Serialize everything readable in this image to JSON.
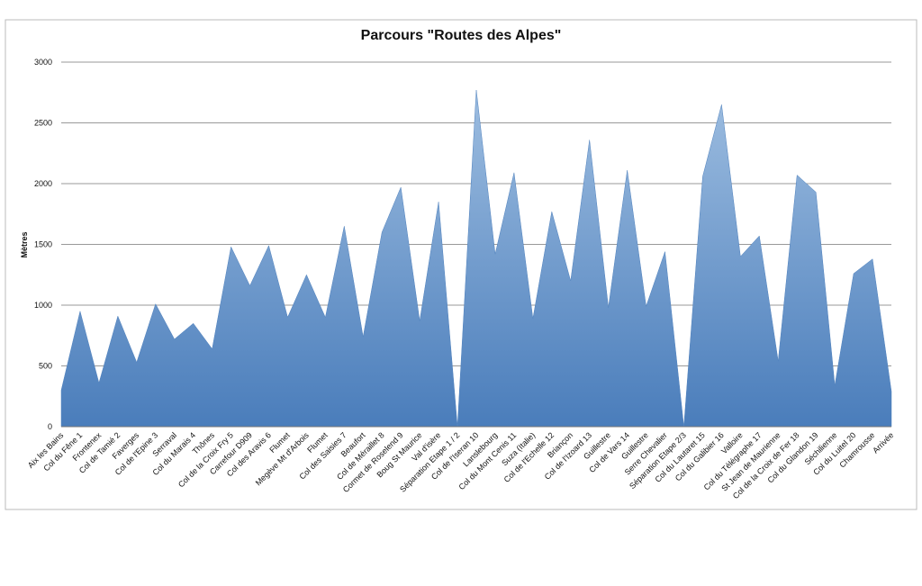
{
  "chart_data": {
    "type": "area",
    "title": "Parcours \"Routes des Alpes\"",
    "y_label": "Mètres",
    "categories": [
      "Aix les Bains",
      "Col du Fêne 1",
      "Frontenex",
      "Col de Tamié 2",
      "Faverges",
      "Col de l'Epine 3",
      "Serraval",
      "Col du Marais 4",
      "Thônes",
      "Col de la Croix Fry 5",
      "Carrefour D909",
      "Col des Aravis 6",
      "Flumet",
      "Megève Mt d'Arbois",
      "Flumet",
      "Col des Saisies 7",
      "Beaufort",
      "Col de Méraillet 8",
      "Cormet de Roselend 9",
      "Boug St Maurice",
      "Val d'isère",
      "Séparation Etape 1 / 2",
      "Col de l'Iseran 10",
      "Lanslebourg",
      "Col du Mont Cenis 11",
      "Suza (Italie)",
      "Col de l'Echelle 12",
      "Briançon",
      "Col de l'Izoard 13",
      "Guillestre",
      "Col de Vars 14",
      "Guillestre",
      "Serre Chevalier",
      "Séparation Etape 2/3",
      "Col du Lautaret 15",
      "Col du Galibier 16",
      "Valloire",
      "Col du Télégraphe 17",
      "St Jean de Maurienne",
      "Col de la Croix de Fer 18",
      "Col du Glandon 19",
      "Séchilienne",
      "Col du Luitel 20",
      "Chamrousse",
      "Arrivée"
    ],
    "values": [
      300,
      950,
      360,
      910,
      530,
      1010,
      720,
      850,
      640,
      1480,
      1160,
      1490,
      900,
      1250,
      900,
      1650,
      740,
      1600,
      1970,
      870,
      1850,
      0,
      2770,
      1420,
      2090,
      890,
      1770,
      1200,
      2360,
      980,
      2110,
      990,
      1440,
      0,
      2060,
      2650,
      1400,
      1570,
      540,
      2070,
      1930,
      340,
      1260,
      1380,
      290
    ],
    "color": "#4f81bd",
    "ylim": [
      0,
      3000
    ],
    "yticks": [
      0,
      500,
      1000,
      1500,
      2000,
      2500,
      3000
    ],
    "grid": true
  }
}
